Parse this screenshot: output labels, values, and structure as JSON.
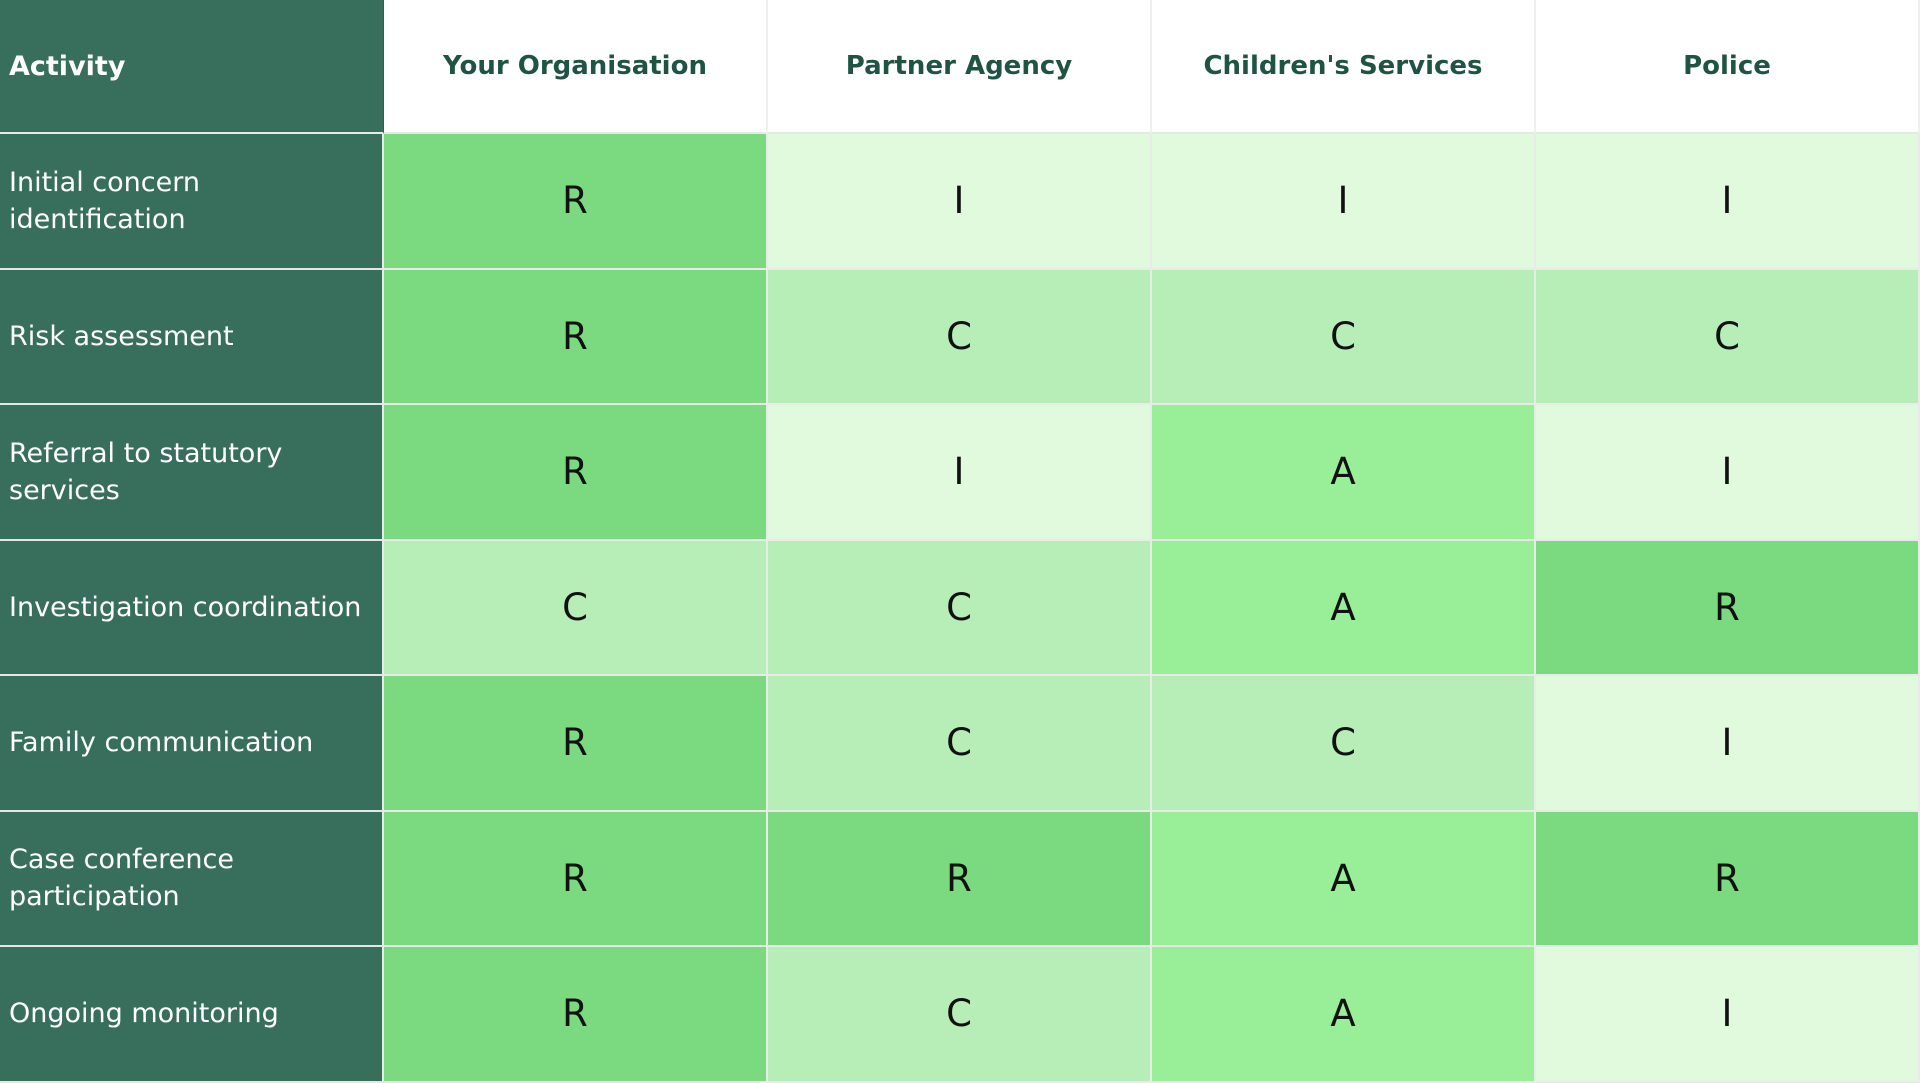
{
  "table": {
    "corner_label": "Activity",
    "columns": [
      "Your Organisation",
      "Partner Agency",
      "Children's Services",
      "Police"
    ],
    "rows": [
      {
        "activity": "Initial concern identification",
        "values": [
          "R",
          "I",
          "I",
          "I"
        ]
      },
      {
        "activity": "Risk assessment",
        "values": [
          "R",
          "C",
          "C",
          "C"
        ]
      },
      {
        "activity": "Referral to statutory services",
        "values": [
          "R",
          "I",
          "A",
          "I"
        ]
      },
      {
        "activity": "Investigation coordination",
        "values": [
          "C",
          "C",
          "A",
          "R"
        ]
      },
      {
        "activity": "Family communication",
        "values": [
          "R",
          "C",
          "C",
          "I"
        ]
      },
      {
        "activity": "Case conference participation",
        "values": [
          "R",
          "R",
          "A",
          "R"
        ]
      },
      {
        "activity": "Ongoing monitoring",
        "values": [
          "R",
          "C",
          "A",
          "I"
        ]
      }
    ]
  },
  "colors": {
    "header_bg": "#386e5c",
    "header_text": "#1f5443",
    "R": "#7bda7f",
    "A": "#99ef98",
    "C": "#b7edb6",
    "I": "#e1fadd"
  }
}
